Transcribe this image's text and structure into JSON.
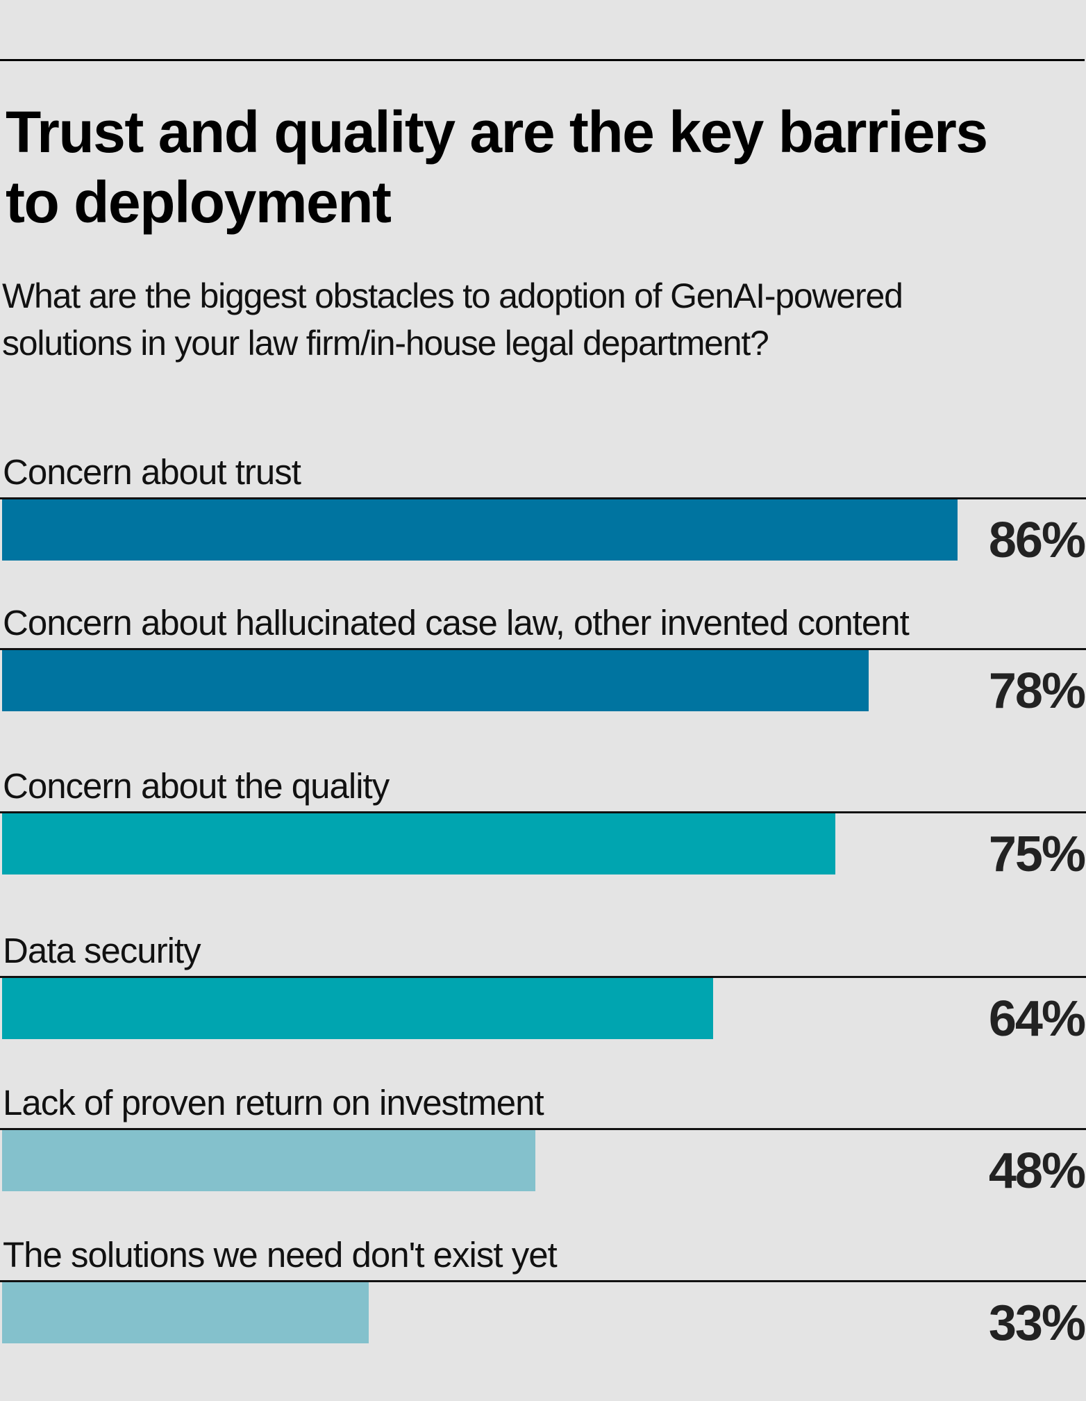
{
  "header": {
    "title_line1": "Trust and quality are the key barriers",
    "title_line2": "to deployment",
    "subtitle_line1": "What are the biggest obstacles to adoption of GenAI-powered",
    "subtitle_line2": "solutions in your law firm/in-house legal department?"
  },
  "colors": {
    "background": "#e4e4e4",
    "dark_blue": "#0074a0",
    "teal": "#00a5b0",
    "light_blue": "#84c1cc",
    "text": "#111111"
  },
  "chart_data": {
    "type": "bar",
    "orientation": "horizontal",
    "title": "Trust and quality are the key barriers to deployment",
    "subtitle": "What are the biggest obstacles to adoption of GenAI-powered solutions in your law firm/in-house legal department?",
    "xlabel": "",
    "ylabel": "",
    "xlim": [
      0,
      100
    ],
    "unit": "%",
    "grid": false,
    "categories": [
      "Concern about trust",
      "Concern about hallucinated case law, other invented content",
      "Concern about the quality",
      "Data security",
      "Lack of proven return on investment",
      "The solutions we need don't exist yet"
    ],
    "values": [
      86,
      78,
      75,
      64,
      48,
      33
    ],
    "value_labels": [
      "86%",
      "78%",
      "75%",
      "64%",
      "48%",
      "33%"
    ],
    "bar_colors": [
      "#0074a0",
      "#0074a0",
      "#00a5b0",
      "#00a5b0",
      "#84c1cc",
      "#84c1cc"
    ]
  }
}
